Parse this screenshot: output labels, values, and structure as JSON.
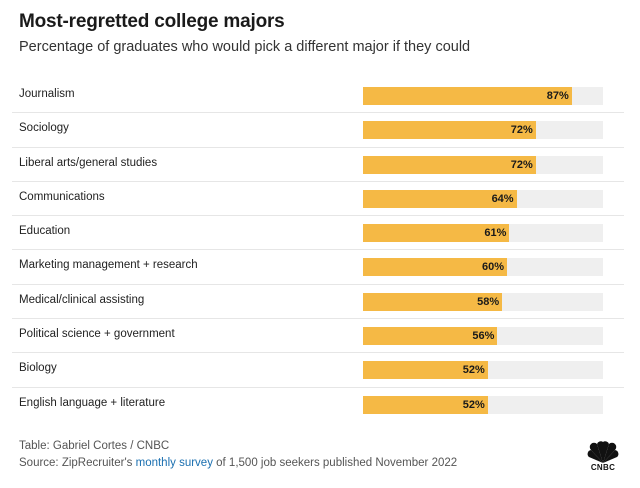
{
  "chart_data": {
    "type": "bar",
    "orientation": "horizontal",
    "title": "Most-regretted college majors",
    "subtitle": "Percentage of graduates who would pick a different major if they could",
    "categories": [
      "Journalism",
      "Sociology",
      "Liberal arts/general studies",
      "Communications",
      "Education",
      "Marketing management + research",
      "Medical/clinical assisting",
      "Political science + government",
      "Biology",
      "English language + literature"
    ],
    "values": [
      87,
      72,
      72,
      64,
      61,
      60,
      58,
      56,
      52,
      52
    ],
    "value_labels": [
      "87%",
      "72%",
      "72%",
      "64%",
      "61%",
      "60%",
      "58%",
      "56%",
      "52%",
      "52%"
    ],
    "xlim": [
      0,
      100
    ],
    "bar_color": "#f5b945",
    "track_color": "#efefef"
  },
  "footer": {
    "credit": "Table: Gabriel Cortes / CNBC",
    "source_prefix": "Source: ZipRecruiter's ",
    "source_link": "monthly survey",
    "source_suffix": " of 1,500 job seekers published November 2022"
  },
  "logo": {
    "icon": "nbc-peacock-icon",
    "text": "CNBC"
  }
}
